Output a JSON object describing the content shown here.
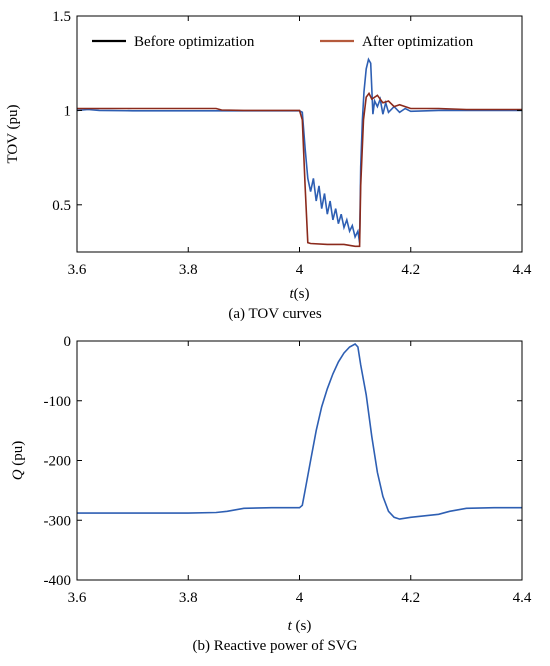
{
  "chart_data": [
    {
      "type": "line",
      "caption": "(a) TOV curves",
      "xlabel": "t(s)",
      "ylabel": "TOV (pu)",
      "xlim": [
        3.6,
        4.4
      ],
      "ylim": [
        0.25,
        1.5
      ],
      "x_ticks": [
        "3.6",
        "3.8",
        "4",
        "4.2",
        "4.4"
      ],
      "y_ticks": [
        "0.5",
        "1",
        "1.5"
      ],
      "legend": {
        "placement": "top"
      },
      "series": [
        {
          "name": "Before optimization",
          "legend_color": "#000000",
          "color": "#2e5fb3",
          "points": [
            [
              3.6,
              1.0
            ],
            [
              3.62,
              1.005
            ],
            [
              3.64,
              1.0
            ],
            [
              3.7,
              0.998
            ],
            [
              3.8,
              0.998
            ],
            [
              3.9,
              0.998
            ],
            [
              4.0,
              0.998
            ],
            [
              4.005,
              0.99
            ],
            [
              4.01,
              0.8
            ],
            [
              4.015,
              0.64
            ],
            [
              4.02,
              0.57
            ],
            [
              4.025,
              0.64
            ],
            [
              4.03,
              0.52
            ],
            [
              4.035,
              0.6
            ],
            [
              4.04,
              0.48
            ],
            [
              4.045,
              0.56
            ],
            [
              4.05,
              0.45
            ],
            [
              4.055,
              0.52
            ],
            [
              4.06,
              0.42
            ],
            [
              4.065,
              0.48
            ],
            [
              4.07,
              0.4
            ],
            [
              4.075,
              0.45
            ],
            [
              4.08,
              0.38
            ],
            [
              4.085,
              0.42
            ],
            [
              4.09,
              0.36
            ],
            [
              4.095,
              0.39
            ],
            [
              4.1,
              0.33
            ],
            [
              4.105,
              0.36
            ],
            [
              4.108,
              0.3
            ],
            [
              4.11,
              0.7
            ],
            [
              4.113,
              0.95
            ],
            [
              4.116,
              1.1
            ],
            [
              4.12,
              1.22
            ],
            [
              4.124,
              1.27
            ],
            [
              4.128,
              1.25
            ],
            [
              4.132,
              0.98
            ],
            [
              4.135,
              1.05
            ],
            [
              4.14,
              1.02
            ],
            [
              4.145,
              1.06
            ],
            [
              4.15,
              0.98
            ],
            [
              4.155,
              1.04
            ],
            [
              4.16,
              0.99
            ],
            [
              4.17,
              1.02
            ],
            [
              4.18,
              0.99
            ],
            [
              4.19,
              1.01
            ],
            [
              4.2,
              0.995
            ],
            [
              4.25,
              1.0
            ],
            [
              4.3,
              1.0
            ],
            [
              4.35,
              1.0
            ],
            [
              4.4,
              1.0
            ]
          ]
        },
        {
          "name": "After optimization",
          "legend_color": "#b55a3c",
          "color": "#8b2a1c",
          "points": [
            [
              3.6,
              1.01
            ],
            [
              3.7,
              1.01
            ],
            [
              3.8,
              1.01
            ],
            [
              3.85,
              1.01
            ],
            [
              3.86,
              1.002
            ],
            [
              3.9,
              1.0
            ],
            [
              4.0,
              1.0
            ],
            [
              4.005,
              0.95
            ],
            [
              4.01,
              0.6
            ],
            [
              4.015,
              0.3
            ],
            [
              4.02,
              0.295
            ],
            [
              4.05,
              0.29
            ],
            [
              4.08,
              0.29
            ],
            [
              4.1,
              0.28
            ],
            [
              4.108,
              0.28
            ],
            [
              4.11,
              0.6
            ],
            [
              4.115,
              0.95
            ],
            [
              4.12,
              1.07
            ],
            [
              4.125,
              1.09
            ],
            [
              4.13,
              1.06
            ],
            [
              4.14,
              1.08
            ],
            [
              4.15,
              1.04
            ],
            [
              4.16,
              1.05
            ],
            [
              4.17,
              1.02
            ],
            [
              4.18,
              1.03
            ],
            [
              4.2,
              1.01
            ],
            [
              4.25,
              1.01
            ],
            [
              4.3,
              1.005
            ],
            [
              4.4,
              1.005
            ]
          ]
        }
      ]
    },
    {
      "type": "line",
      "caption": "(b) Reactive power of SVG",
      "xlabel": "t (s)",
      "ylabel": "Q (pu)",
      "xlim": [
        3.6,
        4.4
      ],
      "ylim": [
        -400,
        0
      ],
      "x_ticks": [
        "3.6",
        "3.8",
        "4",
        "4.2",
        "4.4"
      ],
      "y_ticks": [
        "-400",
        "-300",
        "-200",
        "-100",
        "0"
      ],
      "series": [
        {
          "color": "#2e5fb3",
          "points": [
            [
              3.6,
              -288
            ],
            [
              3.7,
              -288
            ],
            [
              3.8,
              -288
            ],
            [
              3.85,
              -287
            ],
            [
              3.87,
              -285
            ],
            [
              3.9,
              -280
            ],
            [
              3.95,
              -279
            ],
            [
              4.0,
              -279
            ],
            [
              4.005,
              -275
            ],
            [
              4.01,
              -250
            ],
            [
              4.02,
              -200
            ],
            [
              4.03,
              -150
            ],
            [
              4.04,
              -110
            ],
            [
              4.05,
              -80
            ],
            [
              4.06,
              -55
            ],
            [
              4.07,
              -35
            ],
            [
              4.08,
              -20
            ],
            [
              4.09,
              -10
            ],
            [
              4.1,
              -5
            ],
            [
              4.105,
              -10
            ],
            [
              4.11,
              -40
            ],
            [
              4.12,
              -90
            ],
            [
              4.13,
              -160
            ],
            [
              4.14,
              -220
            ],
            [
              4.15,
              -260
            ],
            [
              4.16,
              -285
            ],
            [
              4.17,
              -295
            ],
            [
              4.18,
              -298
            ],
            [
              4.2,
              -295
            ],
            [
              4.25,
              -290
            ],
            [
              4.27,
              -285
            ],
            [
              4.3,
              -280
            ],
            [
              4.35,
              -279
            ],
            [
              4.4,
              -279
            ]
          ]
        }
      ]
    }
  ]
}
